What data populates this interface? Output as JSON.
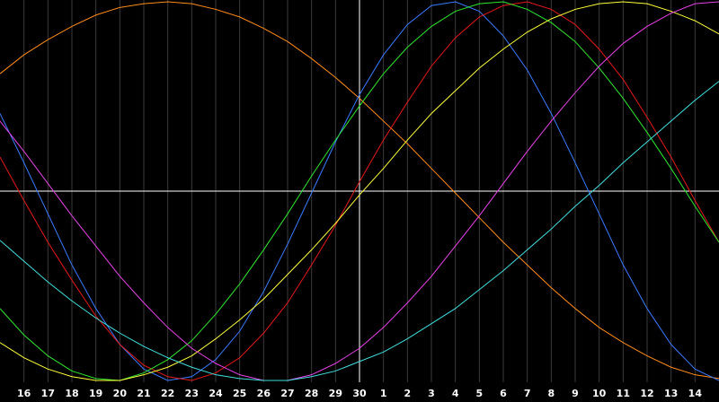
{
  "chart_data": {
    "type": "line",
    "categories": [
      null,
      "16",
      "17",
      "18",
      "19",
      "20",
      "21",
      "22",
      "23",
      "24",
      "25",
      "26",
      "27",
      "28",
      "29",
      "30",
      "1",
      "2",
      "3",
      "4",
      "5",
      "6",
      "7",
      "8",
      "9",
      "10",
      "11",
      "12",
      "13",
      "14",
      null
    ],
    "ylim": [
      -100,
      100
    ],
    "series": [
      {
        "color": "#ff8c1a",
        "values": [
          62,
          72,
          80,
          87,
          93,
          97,
          99,
          100,
          99,
          96,
          92,
          86,
          79,
          70,
          60,
          49,
          37,
          25,
          12,
          -1,
          -14,
          -27,
          -39,
          -51,
          -62,
          -72,
          -80,
          -87,
          -93,
          -97,
          -99
        ]
      },
      {
        "color": "#3a7bff",
        "values": [
          41,
          15,
          -12,
          -39,
          -62,
          -81,
          -94,
          -100,
          -98,
          -89,
          -74,
          -53,
          -28,
          -1,
          26,
          51,
          72,
          88,
          98,
          100,
          95,
          82,
          64,
          41,
          15,
          -12,
          -39,
          -62,
          -81,
          -94,
          -100
        ]
      },
      {
        "color": "#e81818",
        "values": [
          18,
          -5,
          -27,
          -47,
          -66,
          -81,
          -92,
          -98,
          -100,
          -96,
          -88,
          -75,
          -59,
          -39,
          -18,
          5,
          27,
          47,
          66,
          81,
          92,
          98,
          100,
          96,
          88,
          75,
          59,
          39,
          18,
          -5,
          -27
        ]
      },
      {
        "color": "#2ee82e",
        "values": [
          -62,
          -76,
          -87,
          -95,
          -99,
          -100,
          -96,
          -89,
          -79,
          -65,
          -49,
          -31,
          -12,
          8,
          27,
          45,
          62,
          76,
          87,
          95,
          99,
          100,
          96,
          89,
          79,
          65,
          49,
          31,
          12,
          -8,
          -27
        ]
      },
      {
        "color": "#ffff3a",
        "values": [
          -80,
          -88,
          -94,
          -98,
          -100,
          -100,
          -97,
          -93,
          -87,
          -78,
          -68,
          -57,
          -44,
          -31,
          -17,
          -2,
          12,
          27,
          41,
          53,
          65,
          75,
          84,
          91,
          96,
          99,
          100,
          99,
          95,
          90,
          83
        ]
      },
      {
        "color": "#e842e8",
        "values": [
          37,
          21,
          4,
          -13,
          -29,
          -45,
          -59,
          -72,
          -83,
          -91,
          -97,
          -100,
          -100,
          -97,
          -91,
          -83,
          -72,
          -59,
          -45,
          -29,
          -13,
          4,
          21,
          37,
          52,
          66,
          78,
          87,
          94,
          99,
          100
        ]
      },
      {
        "color": "#42e0e0",
        "values": [
          -26,
          -37,
          -48,
          -58,
          -67,
          -75,
          -82,
          -88,
          -93,
          -97,
          -99,
          -100,
          -100,
          -98,
          -95,
          -90,
          -85,
          -78,
          -70,
          -62,
          -52,
          -42,
          -31,
          -20,
          -8,
          3,
          15,
          26,
          37,
          48,
          58
        ]
      }
    ]
  }
}
